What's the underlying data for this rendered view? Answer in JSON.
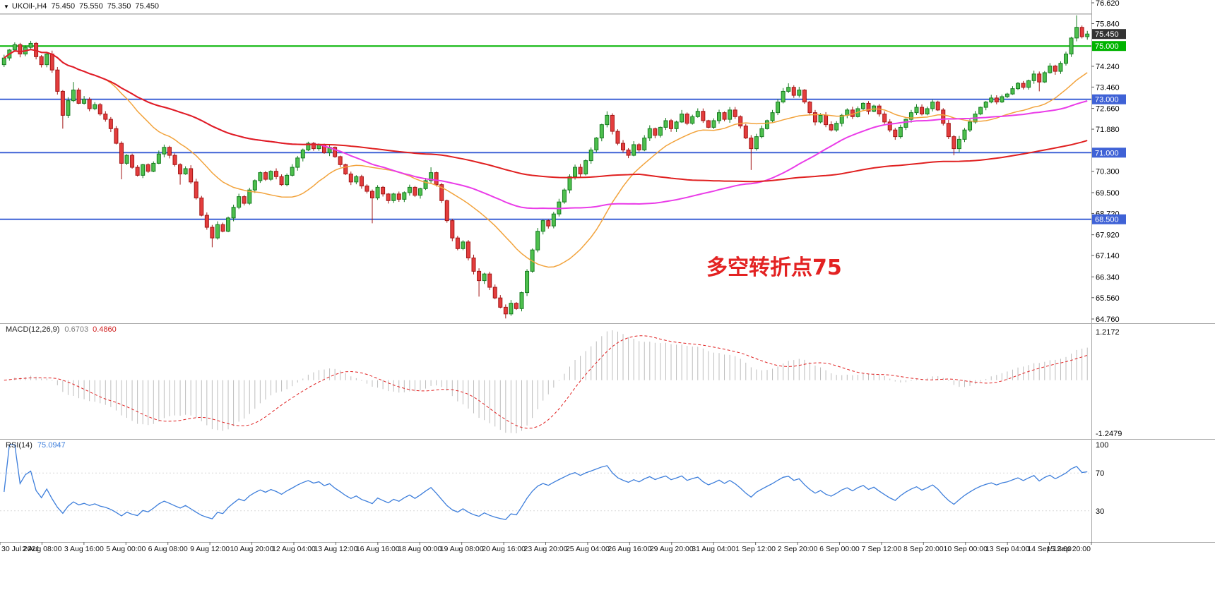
{
  "window": {
    "symbol": "UKOil-,H4",
    "open": "75.450",
    "high": "75.550",
    "low": "75.350",
    "close": "75.450"
  },
  "annotation": {
    "text": "多空转折点75",
    "color": "#e32222"
  },
  "indicators": {
    "macd": {
      "label": "MACD(12,26,9)",
      "value": "0.6703",
      "signal_value": "0.4860",
      "axis_max": "1.2172",
      "axis_min": "-1.2479"
    },
    "rsi": {
      "label": "RSI(14)",
      "value": "75.0947",
      "levels": [
        "100",
        "70",
        "30"
      ]
    }
  },
  "colors": {
    "up_fill": "#4ec04e",
    "up_stroke": "#157a1f",
    "down_fill": "#e43d3d",
    "down_stroke": "#a31515",
    "ma_fast": "#f2a33c",
    "ma_mid": "#ea3ce8",
    "ma_slow": "#e02020",
    "hline_green": "#00b300",
    "hline_blue": "#3f62d6",
    "macd_hist": "#bdbdbd",
    "macd_signal": "#e02020",
    "rsi": "#3d7edb",
    "annotation": "#e32222",
    "axis_text": "#000000",
    "divider": "#a8a8a8"
  },
  "chart_data": {
    "type": "candlestick",
    "symbol": "UKOil-",
    "timeframe": "H4",
    "title": "UKOil-,H4 75.450 75.550 75.350 75.450",
    "price_range": {
      "max": 76.62,
      "min": 64.76
    },
    "price_axis_labels": [
      "76.620",
      "75.840",
      "74.240",
      "73.460",
      "72.660",
      "71.880",
      "70.300",
      "69.500",
      "68.720",
      "67.920",
      "67.140",
      "66.340",
      "65.560",
      "64.760"
    ],
    "price_badges": [
      {
        "text": "75.450",
        "price": 75.45,
        "bg": "#333333"
      },
      {
        "text": "75.000",
        "price": 75.0,
        "bg": "#00b300"
      },
      {
        "text": "73.000",
        "price": 73.0,
        "bg": "#3f62d6"
      },
      {
        "text": "71.000",
        "price": 71.0,
        "bg": "#3f62d6"
      },
      {
        "text": "68.500",
        "price": 68.5,
        "bg": "#3f62d6"
      }
    ],
    "hlines": [
      {
        "price": 76.2,
        "color": "#8a8a8a",
        "width": 1
      },
      {
        "price": 75.0,
        "color": "#00b300",
        "width": 2
      },
      {
        "price": 73.0,
        "color": "#3f62d6",
        "width": 2
      },
      {
        "price": 71.0,
        "color": "#3f62d6",
        "width": 2
      },
      {
        "price": 68.5,
        "color": "#3f62d6",
        "width": 2
      }
    ],
    "moving_averages": [
      {
        "period": 20,
        "color": "#f2a33c",
        "width": 1.5
      },
      {
        "period": 60,
        "color": "#ea3ce8",
        "width": 2
      },
      {
        "period": 120,
        "color": "#e02020",
        "width": 2
      }
    ],
    "macd_params": {
      "fast": 12,
      "slow": 26,
      "signal": 9
    },
    "rsi_params": {
      "period": 14
    },
    "first_open": 74.3,
    "closes": [
      74.55,
      74.85,
      75.05,
      74.7,
      74.95,
      75.1,
      74.6,
      74.3,
      74.7,
      74.1,
      73.3,
      72.4,
      72.95,
      73.35,
      72.85,
      73.0,
      72.65,
      72.8,
      72.45,
      72.25,
      71.9,
      71.35,
      70.6,
      70.9,
      70.45,
      70.15,
      70.55,
      70.3,
      70.6,
      70.95,
      71.2,
      70.9,
      70.55,
      70.2,
      70.4,
      69.9,
      69.3,
      68.65,
      68.2,
      67.8,
      68.3,
      68.05,
      68.55,
      68.95,
      69.35,
      69.1,
      69.6,
      69.95,
      70.25,
      70.0,
      70.3,
      70.1,
      69.8,
      70.15,
      70.45,
      70.8,
      71.1,
      71.35,
      71.15,
      71.3,
      71.0,
      71.2,
      70.85,
      70.55,
      70.2,
      69.9,
      70.1,
      69.75,
      69.55,
      69.3,
      69.7,
      69.45,
      69.2,
      69.45,
      69.25,
      69.5,
      69.7,
      69.4,
      69.65,
      69.95,
      70.25,
      69.8,
      69.2,
      68.45,
      67.8,
      67.4,
      67.65,
      67.05,
      66.55,
      66.2,
      66.45,
      65.95,
      65.55,
      65.2,
      64.95,
      65.35,
      65.15,
      65.75,
      66.55,
      67.35,
      68.05,
      68.45,
      68.25,
      68.7,
      69.15,
      69.6,
      70.1,
      70.45,
      70.2,
      70.7,
      71.1,
      71.55,
      72.05,
      72.4,
      71.8,
      71.35,
      71.1,
      70.9,
      71.3,
      71.1,
      71.55,
      71.9,
      71.65,
      71.95,
      72.2,
      71.9,
      72.15,
      72.45,
      72.1,
      72.35,
      72.55,
      72.2,
      71.95,
      72.2,
      72.5,
      72.25,
      72.6,
      72.35,
      72.0,
      71.55,
      71.15,
      71.6,
      71.9,
      72.2,
      72.5,
      72.9,
      73.3,
      73.45,
      73.15,
      73.35,
      72.9,
      72.5,
      72.15,
      72.4,
      72.05,
      71.85,
      72.1,
      72.4,
      72.6,
      72.35,
      72.65,
      72.85,
      72.55,
      72.75,
      72.45,
      72.15,
      71.85,
      71.6,
      71.95,
      72.25,
      72.5,
      72.7,
      72.45,
      72.65,
      72.9,
      72.6,
      72.1,
      71.6,
      71.15,
      71.5,
      71.85,
      72.15,
      72.45,
      72.7,
      72.9,
      73.05,
      72.9,
      73.1,
      73.2,
      73.4,
      73.6,
      73.45,
      73.7,
      73.95,
      73.65,
      74.0,
      74.25,
      74.05,
      74.35,
      74.7,
      75.3,
      75.7,
      75.35,
      75.45
    ],
    "wick_overrides": {
      "11": [
        0,
        0.5
      ],
      "13": [
        0.3,
        0
      ],
      "22": [
        0,
        0.6
      ],
      "33": [
        0,
        0.4
      ],
      "39": [
        0,
        0.35
      ],
      "69": [
        0,
        0.95
      ],
      "80": [
        0.2,
        0
      ],
      "89": [
        0,
        0.6
      ],
      "94": [
        0,
        0.17
      ],
      "113": [
        0.15,
        0
      ],
      "127": [
        0.15,
        0
      ],
      "140": [
        0,
        0.8
      ],
      "147": [
        0.15,
        0
      ],
      "178": [
        0,
        0.25
      ],
      "194": [
        0,
        0.35
      ],
      "201": [
        0.45,
        0
      ]
    },
    "time_labels": [
      "30 Jul 2021",
      "2 Aug 08:00",
      "3 Aug 16:00",
      "5 Aug 00:00",
      "6 Aug 08:00",
      "9 Aug 12:00",
      "10 Aug 20:00",
      "12 Aug 04:00",
      "13 Aug 12:00",
      "16 Aug 16:00",
      "18 Aug 00:00",
      "19 Aug 08:00",
      "20 Aug 16:00",
      "23 Aug 20:00",
      "25 Aug 04:00",
      "26 Aug 16:00",
      "29 Aug 20:00",
      "31 Aug 04:00",
      "1 Sep 12:00",
      "2 Sep 20:00",
      "6 Sep 00:00",
      "7 Sep 12:00",
      "8 Sep 20:00",
      "10 Sep 00:00",
      "13 Sep 04:00",
      "14 Sep 12:00",
      "15 Sep 20:00"
    ]
  }
}
